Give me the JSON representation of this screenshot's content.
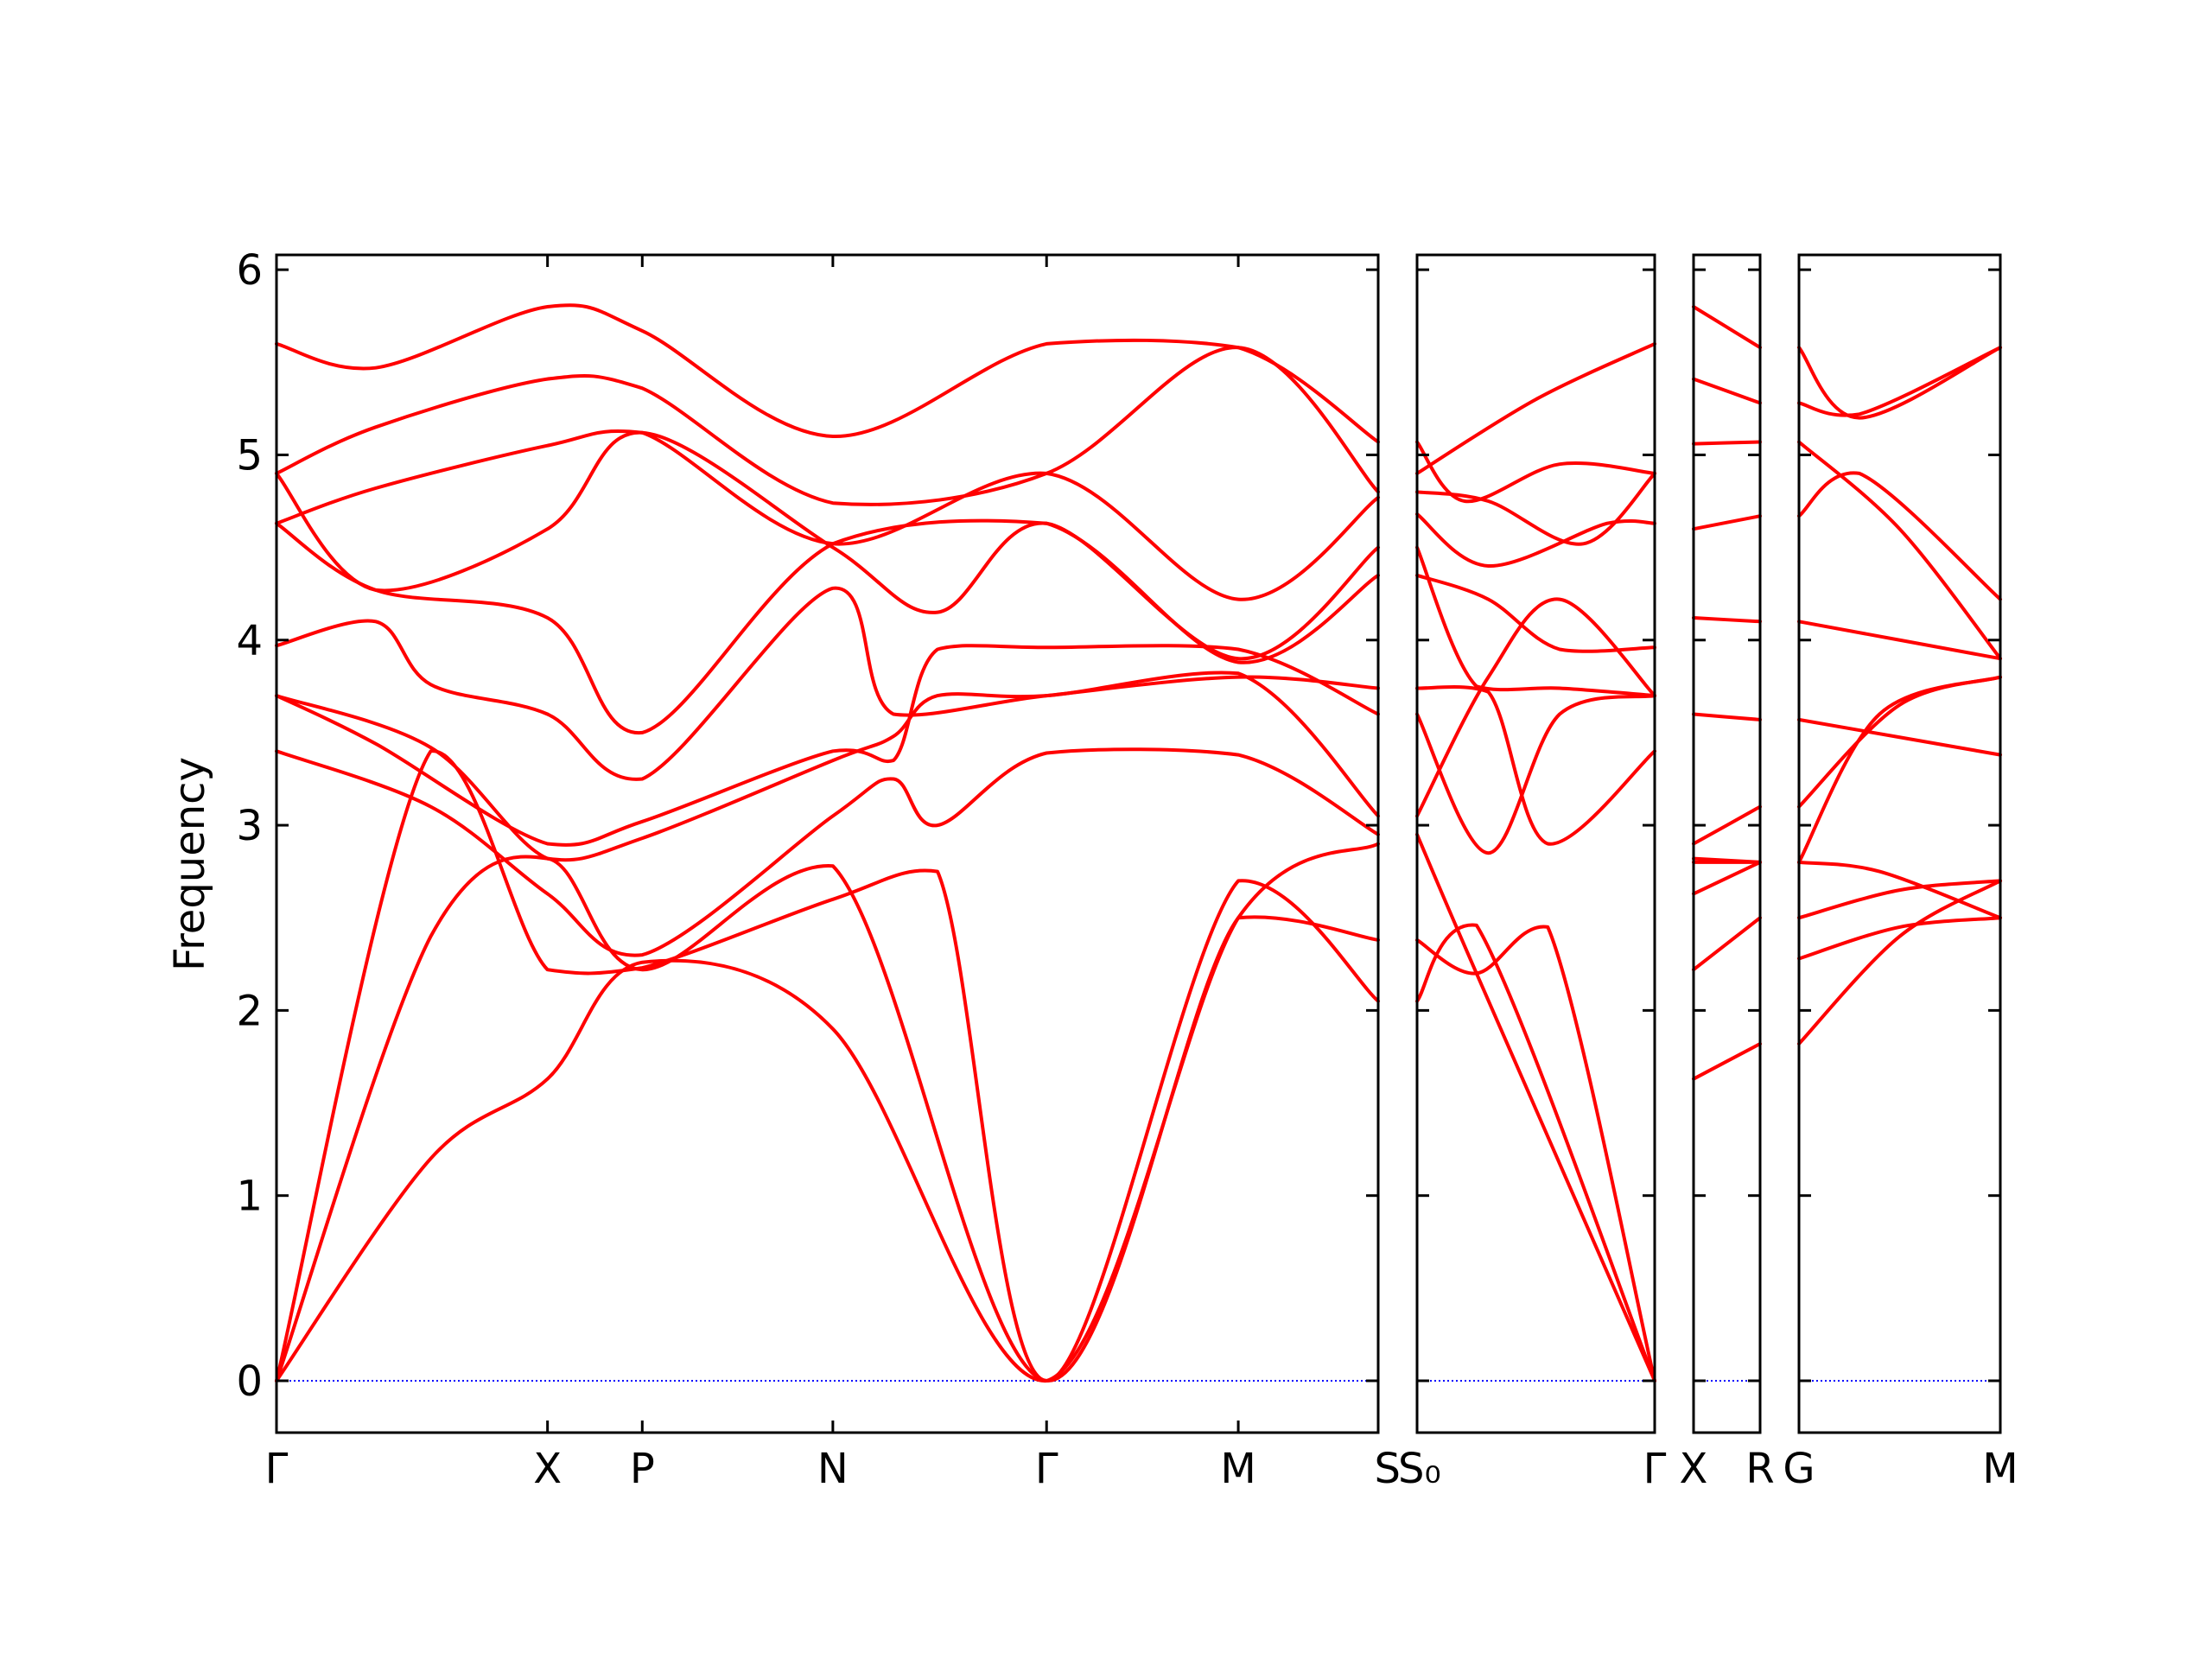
{
  "chart_data": {
    "type": "line",
    "ylabel": "Frequency",
    "ylim": [
      -0.28,
      6.08
    ],
    "yticks": [
      0,
      1,
      2,
      3,
      4,
      5,
      6
    ],
    "colors": {
      "bands": "#ff0000",
      "zero_line": "#0000ff",
      "axes": "#000000"
    },
    "grid": false,
    "segments": [
      {
        "id": "G-X-P-N-G-M-S",
        "span": [
          0,
          1
        ],
        "labels": [
          {
            "text": "Γ",
            "at": 0
          },
          {
            "text": "X",
            "at": 0.246
          },
          {
            "text": "P",
            "at": 0.332
          },
          {
            "text": "N",
            "at": 0.505
          },
          {
            "text": "Γ",
            "at": 0.699
          },
          {
            "text": "M",
            "at": 0.873
          },
          {
            "text": "S",
            "at": 1
          }
        ],
        "bands": [
          [
            [
              0,
              5.6
            ],
            [
              0.09,
              5.47
            ],
            [
              0.246,
              5.8
            ],
            [
              0.332,
              5.67
            ],
            [
              0.505,
              5.1
            ],
            [
              0.699,
              5.6
            ],
            [
              0.873,
              5.58
            ],
            [
              1,
              5.07
            ]
          ],
          [
            [
              0,
              4.9
            ],
            [
              0.09,
              5.15
            ],
            [
              0.246,
              5.41
            ],
            [
              0.332,
              5.36
            ],
            [
              0.505,
              4.74
            ],
            [
              0.699,
              4.9
            ],
            [
              0.873,
              5.58
            ],
            [
              1,
              4.8
            ]
          ],
          [
            [
              0,
              4.63
            ],
            [
              0.09,
              4.82
            ],
            [
              0.246,
              5.05
            ],
            [
              0.332,
              5.12
            ],
            [
              0.505,
              4.52
            ],
            [
              0.699,
              4.9
            ],
            [
              0.873,
              4.22
            ],
            [
              1,
              4.77
            ]
          ],
          [
            [
              0,
              4.9
            ],
            [
              0.09,
              4.27
            ],
            [
              0.246,
              4.6
            ],
            [
              0.332,
              5.12
            ],
            [
              0.505,
              4.5
            ],
            [
              0.6,
              4.15
            ],
            [
              0.699,
              4.63
            ],
            [
              0.873,
              3.9
            ],
            [
              1,
              4.5
            ]
          ],
          [
            [
              0,
              4.63
            ],
            [
              0.09,
              4.27
            ],
            [
              0.246,
              4.12
            ],
            [
              0.332,
              3.5
            ],
            [
              0.505,
              4.52
            ],
            [
              0.699,
              4.63
            ],
            [
              0.873,
              3.88
            ],
            [
              1,
              4.35
            ]
          ],
          [
            [
              0,
              3.97
            ],
            [
              0.09,
              4.1
            ],
            [
              0.14,
              3.76
            ],
            [
              0.246,
              3.6
            ],
            [
              0.332,
              3.25
            ],
            [
              0.505,
              4.28
            ],
            [
              0.56,
              3.6
            ],
            [
              0.699,
              3.7
            ],
            [
              0.873,
              3.8
            ],
            [
              1,
              3.74
            ]
          ],
          [
            [
              0,
              3.7
            ],
            [
              0.09,
              3.44
            ],
            [
              0.246,
              2.9
            ],
            [
              0.332,
              3.02
            ],
            [
              0.505,
              3.4
            ],
            [
              0.56,
              3.35
            ],
            [
              0.6,
              3.95
            ],
            [
              0.699,
              3.96
            ],
            [
              0.873,
              3.95
            ],
            [
              1,
              3.6
            ]
          ],
          [
            [
              0,
              3.7
            ],
            [
              0.14,
              3.42
            ],
            [
              0.246,
              2.82
            ],
            [
              0.332,
              2.93
            ],
            [
              0.505,
              3.35
            ],
            [
              0.56,
              3.48
            ],
            [
              0.6,
              3.7
            ],
            [
              0.699,
              3.7
            ],
            [
              0.873,
              3.82
            ],
            [
              1,
              3.05
            ]
          ],
          [
            [
              0,
              3.4
            ],
            [
              0.14,
              3.1
            ],
            [
              0.246,
              2.63
            ],
            [
              0.332,
              2.3
            ],
            [
              0.505,
              3.05
            ],
            [
              0.56,
              3.25
            ],
            [
              0.6,
              3.0
            ],
            [
              0.699,
              3.39
            ],
            [
              0.873,
              3.38
            ],
            [
              1,
              2.95
            ]
          ],
          [
            [
              0,
              0
            ],
            [
              0.14,
              3.4
            ],
            [
              0.246,
              2.22
            ],
            [
              0.332,
              2.23
            ],
            [
              0.505,
              2.6
            ],
            [
              0.6,
              2.75
            ],
            [
              0.699,
              0
            ],
            [
              0.873,
              2.7
            ],
            [
              1,
              2.05
            ]
          ],
          [
            [
              0,
              0
            ],
            [
              0.14,
              2.4
            ],
            [
              0.246,
              2.82
            ],
            [
              0.332,
              2.22
            ],
            [
              0.505,
              2.78
            ],
            [
              0.699,
              0
            ],
            [
              0.873,
              2.5
            ],
            [
              1,
              2.38
            ]
          ],
          [
            [
              0,
              0
            ],
            [
              0.14,
              1.2
            ],
            [
              0.246,
              1.63
            ],
            [
              0.332,
              2.26
            ],
            [
              0.505,
              1.9
            ],
            [
              0.699,
              0
            ],
            [
              0.873,
              2.5
            ],
            [
              1,
              2.9
            ]
          ]
        ]
      },
      {
        "id": "S0-G",
        "span": [
          0,
          1
        ],
        "labels": [
          {
            "text": "S₀",
            "at": 0
          },
          {
            "text": "Γ",
            "at": 1
          }
        ],
        "bands": [
          [
            [
              0,
              4.9
            ],
            [
              0.5,
              5.3
            ],
            [
              1,
              5.6
            ]
          ],
          [
            [
              0,
              5.07
            ],
            [
              0.2,
              4.75
            ],
            [
              0.6,
              4.95
            ],
            [
              1,
              4.9
            ]
          ],
          [
            [
              0,
              4.8
            ],
            [
              0.3,
              4.75
            ],
            [
              0.7,
              4.52
            ],
            [
              1,
              4.9
            ]
          ],
          [
            [
              0,
              4.68
            ],
            [
              0.3,
              4.4
            ],
            [
              0.8,
              4.63
            ],
            [
              1,
              4.63
            ]
          ],
          [
            [
              0,
              4.5
            ],
            [
              0.25,
              3.75
            ],
            [
              0.6,
              3.74
            ],
            [
              1,
              3.7
            ]
          ],
          [
            [
              0,
              4.35
            ],
            [
              0.3,
              4.22
            ],
            [
              0.6,
              3.95
            ],
            [
              1,
              3.96
            ]
          ],
          [
            [
              0,
              3.74
            ],
            [
              0.3,
              3.72
            ],
            [
              0.55,
              2.9
            ],
            [
              1,
              3.4
            ]
          ],
          [
            [
              0,
              3.6
            ],
            [
              0.3,
              2.85
            ],
            [
              0.6,
              3.6
            ],
            [
              1,
              3.7
            ]
          ],
          [
            [
              0,
              3.05
            ],
            [
              0.3,
              3.8
            ],
            [
              0.6,
              4.22
            ],
            [
              1,
              3.7
            ]
          ],
          [
            [
              0,
              2.95
            ],
            [
              0.25,
              2.2
            ],
            [
              1,
              0
            ]
          ],
          [
            [
              0,
              2.05
            ],
            [
              0.25,
              2.46
            ],
            [
              1,
              0
            ]
          ],
          [
            [
              0,
              2.38
            ],
            [
              0.25,
              2.2
            ],
            [
              0.55,
              2.45
            ],
            [
              1,
              0
            ]
          ]
        ]
      },
      {
        "id": "X-R",
        "span": [
          0,
          1
        ],
        "labels": [
          {
            "text": "X",
            "at": 0
          },
          {
            "text": "R",
            "at": 1
          }
        ],
        "bands": [
          [
            [
              0,
              5.8
            ],
            [
              1,
              5.58
            ]
          ],
          [
            [
              0,
              5.41
            ],
            [
              1,
              5.28
            ]
          ],
          [
            [
              0,
              5.06
            ],
            [
              1,
              5.07
            ]
          ],
          [
            [
              0,
              4.6
            ],
            [
              1,
              4.67
            ]
          ],
          [
            [
              0,
              4.12
            ],
            [
              1,
              4.1
            ]
          ],
          [
            [
              0,
              3.6
            ],
            [
              1,
              3.57
            ]
          ],
          [
            [
              0,
              2.9
            ],
            [
              1,
              3.1
            ]
          ],
          [
            [
              0,
              2.82
            ],
            [
              1,
              2.8
            ]
          ],
          [
            [
              0,
              2.8
            ],
            [
              1,
              2.8
            ]
          ],
          [
            [
              0,
              2.63
            ],
            [
              1,
              2.8
            ]
          ],
          [
            [
              0,
              2.22
            ],
            [
              1,
              2.5
            ]
          ],
          [
            [
              0,
              1.63
            ],
            [
              1,
              1.82
            ]
          ]
        ]
      },
      {
        "id": "G-M",
        "span": [
          0,
          1
        ],
        "labels": [
          {
            "text": "G",
            "at": 0
          },
          {
            "text": "M",
            "at": 1
          }
        ],
        "bands": [
          [
            [
              0,
              5.58
            ],
            [
              0.3,
              5.2
            ],
            [
              1,
              5.58
            ]
          ],
          [
            [
              0,
              5.28
            ],
            [
              0.3,
              5.22
            ],
            [
              1,
              5.58
            ]
          ],
          [
            [
              0,
              5.07
            ],
            [
              0.5,
              4.6
            ],
            [
              1,
              3.9
            ]
          ],
          [
            [
              0,
              4.67
            ],
            [
              0.3,
              4.9
            ],
            [
              1,
              4.22
            ]
          ],
          [
            [
              0,
              4.1
            ],
            [
              1,
              3.9
            ]
          ],
          [
            [
              0,
              3.57
            ],
            [
              1,
              3.38
            ]
          ],
          [
            [
              0,
              3.1
            ],
            [
              0.5,
              3.65
            ],
            [
              1,
              3.8
            ]
          ],
          [
            [
              0,
              2.8
            ],
            [
              0.4,
              3.6
            ],
            [
              1,
              3.8
            ]
          ],
          [
            [
              0,
              2.8
            ],
            [
              0.4,
              2.75
            ],
            [
              1,
              2.5
            ]
          ],
          [
            [
              0,
              2.5
            ],
            [
              0.5,
              2.65
            ],
            [
              1,
              2.7
            ]
          ],
          [
            [
              0,
              2.28
            ],
            [
              0.5,
              2.45
            ],
            [
              1,
              2.5
            ]
          ],
          [
            [
              0,
              1.82
            ],
            [
              0.5,
              2.4
            ],
            [
              1,
              2.7
            ]
          ]
        ]
      }
    ]
  }
}
